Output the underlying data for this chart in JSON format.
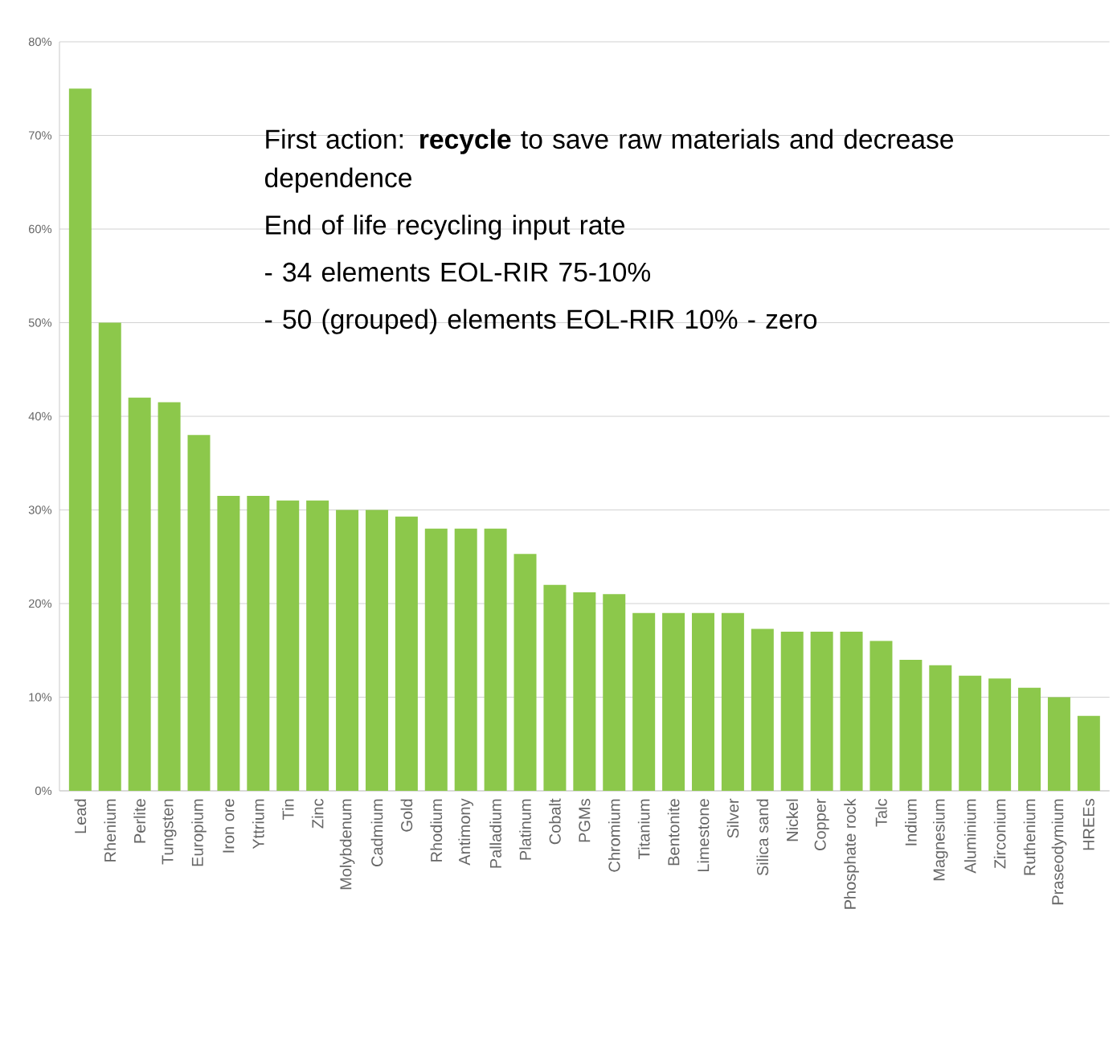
{
  "chart_data": {
    "type": "bar",
    "categories": [
      "Lead",
      "Rhenium",
      "Perlite",
      "Tungsten",
      "Europium",
      "Iron ore",
      "Yttrium",
      "Tin",
      "Zinc",
      "Molybdenum",
      "Cadmium",
      "Gold",
      "Rhodium",
      "Antimony",
      "Palladium",
      "Platinum",
      "Cobalt",
      "PGMs",
      "Chromium",
      "Titanium",
      "Bentonite",
      "Limestone",
      "Silver",
      "Silica sand",
      "Nickel",
      "Copper",
      "Phosphate rock",
      "Talc",
      "Indium",
      "Magnesium",
      "Aluminium",
      "Zirconium",
      "Ruthenium",
      "Praseodymium",
      "HREEs"
    ],
    "values": [
      75,
      50,
      42,
      41.5,
      38,
      31.5,
      31.5,
      31,
      31,
      30,
      30,
      29.3,
      28,
      28,
      28,
      25.3,
      22,
      21.2,
      21,
      19,
      19,
      19,
      19,
      17.3,
      17,
      17,
      17,
      16,
      14,
      13.4,
      12.3,
      12,
      11,
      10,
      8
    ],
    "color": "#8cc84b",
    "ylim": [
      0,
      80
    ],
    "yticks": [
      {
        "value": 0,
        "label": "0%"
      },
      {
        "value": 10,
        "label": "10%"
      },
      {
        "value": 20,
        "label": "20%"
      },
      {
        "value": 30,
        "label": "30%"
      },
      {
        "value": 40,
        "label": "40%"
      },
      {
        "value": 50,
        "label": "50%"
      },
      {
        "value": 60,
        "label": "60%"
      },
      {
        "value": 70,
        "label": "70%"
      },
      {
        "value": 80,
        "label": "80%"
      }
    ],
    "grid": "y",
    "annotations": [
      "First action: **recycle** to save raw materials and decrease dependence",
      "End of life recycling input rate",
      "-  34 elements EOL-RIR 75-10%",
      "-  50 (grouped) elements EOL-RIR 10% - zero"
    ]
  }
}
